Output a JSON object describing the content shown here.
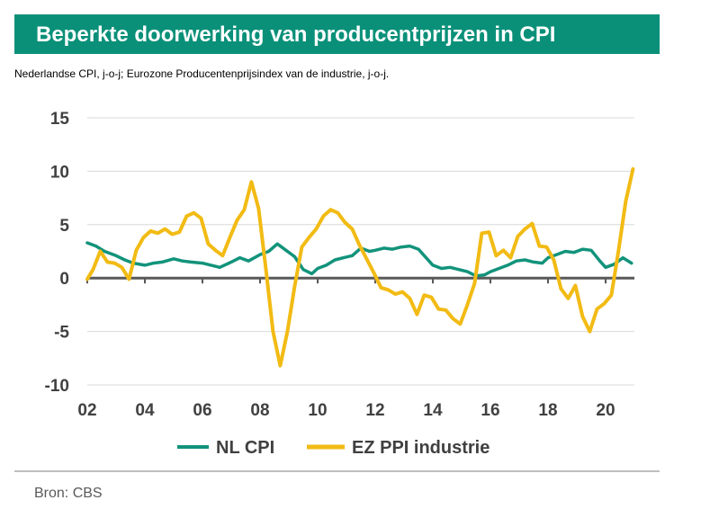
{
  "header": {
    "title": "Beperkte doorwerking van producentprijzen in CPI",
    "subtitle": "Nederlandse CPI, j-o-j; Eurozone Producentenprijsindex van de industrie, j-o-j."
  },
  "footer": {
    "source": "Bron: CBS"
  },
  "colors": {
    "accent": "#0a9079",
    "nl_cpi": "#12937b",
    "ez_ppi": "#f2bb14",
    "axis": "#595959",
    "grid": "#d9d9d9"
  },
  "chart_data": {
    "type": "line",
    "title": "Beperkte doorwerking van producentprijzen in CPI",
    "xlabel": "",
    "ylabel": "",
    "xlim": [
      2002,
      2021
    ],
    "ylim": [
      -10,
      15
    ],
    "y_ticks": [
      15,
      10,
      5,
      0,
      -5,
      -10
    ],
    "y_tick_labels": [
      "15",
      "10",
      "5",
      "0",
      "-5",
      "-10"
    ],
    "x_ticks": [
      2002,
      2004,
      2006,
      2008,
      2010,
      2012,
      2014,
      2016,
      2018,
      2020
    ],
    "x_tick_labels": [
      "02",
      "04",
      "06",
      "08",
      "10",
      "12",
      "14",
      "16",
      "18",
      "20"
    ],
    "grid": true,
    "legend_position": "bottom",
    "series": [
      {
        "name": "NL CPI",
        "x": [
          2002.0,
          2002.3,
          2002.6,
          2003.0,
          2003.3,
          2003.6,
          2004.0,
          2004.3,
          2004.6,
          2005.0,
          2005.3,
          2005.6,
          2006.0,
          2006.3,
          2006.6,
          2007.0,
          2007.3,
          2007.6,
          2008.0,
          2008.3,
          2008.6,
          2008.9,
          2009.2,
          2009.5,
          2009.8,
          2010.0,
          2010.3,
          2010.6,
          2010.9,
          2011.2,
          2011.5,
          2011.8,
          2012.0,
          2012.3,
          2012.6,
          2012.9,
          2013.2,
          2013.5,
          2013.8,
          2014.0,
          2014.3,
          2014.6,
          2014.9,
          2015.2,
          2015.5,
          2015.8,
          2016.0,
          2016.3,
          2016.6,
          2016.9,
          2017.2,
          2017.5,
          2017.8,
          2018.0,
          2018.3,
          2018.6,
          2018.9,
          2019.2,
          2019.5,
          2019.8,
          2020.0,
          2020.3,
          2020.6,
          2020.9
        ],
        "values": [
          3.3,
          3.0,
          2.5,
          2.1,
          1.7,
          1.4,
          1.2,
          1.4,
          1.5,
          1.8,
          1.6,
          1.5,
          1.4,
          1.2,
          1.0,
          1.5,
          1.9,
          1.6,
          2.2,
          2.5,
          3.2,
          2.6,
          2.0,
          0.8,
          0.4,
          0.9,
          1.2,
          1.7,
          1.9,
          2.1,
          2.8,
          2.5,
          2.6,
          2.8,
          2.7,
          2.9,
          3.0,
          2.7,
          1.8,
          1.2,
          0.9,
          1.0,
          0.8,
          0.6,
          0.2,
          0.3,
          0.6,
          0.9,
          1.2,
          1.6,
          1.7,
          1.5,
          1.4,
          1.9,
          2.2,
          2.5,
          2.4,
          2.7,
          2.6,
          1.6,
          1.0,
          1.3,
          1.9,
          1.4
        ]
      },
      {
        "name": "EZ PPI industrie",
        "x": [
          2002.0,
          2002.2,
          2002.45,
          2002.7,
          2002.95,
          2003.2,
          2003.45,
          2003.7,
          2003.95,
          2004.2,
          2004.45,
          2004.7,
          2004.95,
          2005.2,
          2005.45,
          2005.7,
          2005.95,
          2006.2,
          2006.45,
          2006.7,
          2006.95,
          2007.2,
          2007.45,
          2007.7,
          2007.95,
          2008.2,
          2008.45,
          2008.7,
          2008.95,
          2009.2,
          2009.45,
          2009.7,
          2009.95,
          2010.2,
          2010.45,
          2010.7,
          2010.95,
          2011.2,
          2011.45,
          2011.7,
          2011.95,
          2012.2,
          2012.45,
          2012.7,
          2012.95,
          2013.2,
          2013.45,
          2013.7,
          2013.95,
          2014.2,
          2014.45,
          2014.7,
          2014.95,
          2015.2,
          2015.45,
          2015.7,
          2015.95,
          2016.2,
          2016.45,
          2016.7,
          2016.95,
          2017.2,
          2017.45,
          2017.7,
          2017.95,
          2018.2,
          2018.45,
          2018.7,
          2018.95,
          2019.2,
          2019.45,
          2019.7,
          2019.95,
          2020.2,
          2020.45,
          2020.7,
          2020.95
        ],
        "values": [
          -0.1,
          0.8,
          2.5,
          1.5,
          1.4,
          1.0,
          -0.1,
          2.6,
          3.8,
          4.4,
          4.2,
          4.6,
          4.1,
          4.3,
          5.8,
          6.1,
          5.6,
          3.2,
          2.6,
          2.1,
          3.8,
          5.4,
          6.4,
          9.0,
          6.5,
          0.9,
          -5.0,
          -8.2,
          -5.0,
          -0.8,
          2.9,
          3.8,
          4.6,
          5.8,
          6.4,
          6.1,
          5.2,
          4.6,
          3.1,
          1.8,
          0.5,
          -0.9,
          -1.1,
          -1.5,
          -1.3,
          -1.9,
          -3.4,
          -1.6,
          -1.8,
          -2.9,
          -3.0,
          -3.8,
          -4.3,
          -2.5,
          -0.5,
          4.2,
          4.3,
          2.1,
          2.6,
          1.9,
          3.9,
          4.6,
          5.1,
          3.0,
          2.9,
          1.7,
          -1.0,
          -1.9,
          -0.7,
          -3.6,
          -5.0,
          -2.9,
          -2.4,
          -1.6,
          2.6,
          7.2,
          10.2
        ]
      }
    ]
  }
}
